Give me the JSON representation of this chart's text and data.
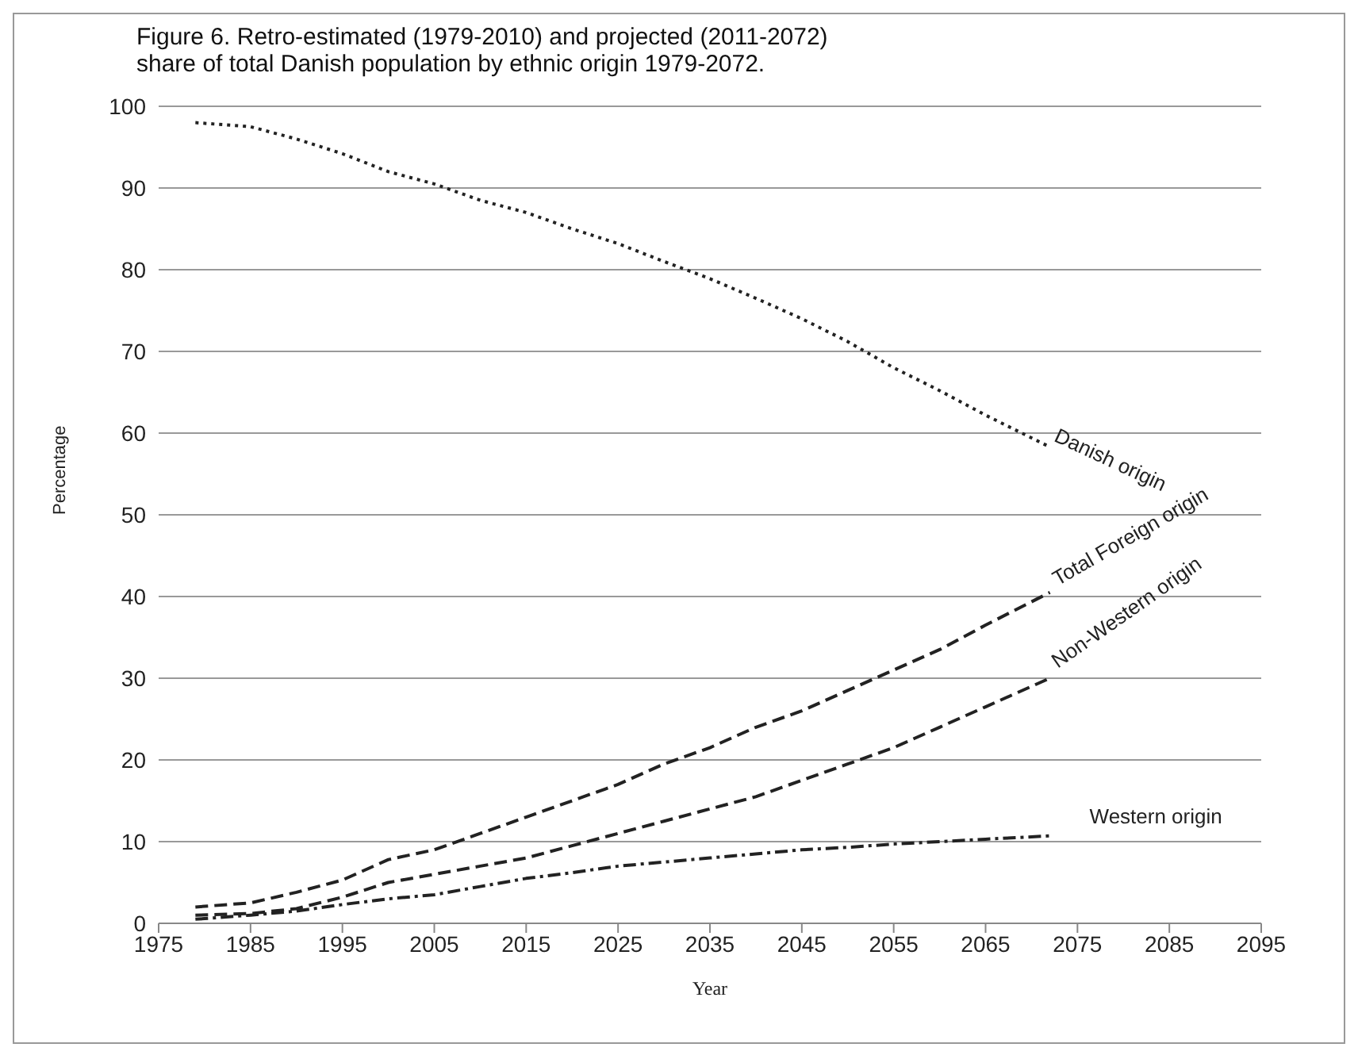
{
  "chart_data": {
    "type": "line",
    "title": "Figure 6.  Retro-estimated (1979-2010) and projected (2011-2072) share of total Danish population by ethnic origin 1979-2072.",
    "xlabel": "Year",
    "ylabel": "Percentage",
    "x": [
      1979,
      1985,
      1990,
      1995,
      2000,
      2005,
      2010,
      2015,
      2020,
      2025,
      2030,
      2035,
      2040,
      2045,
      2050,
      2055,
      2060,
      2065,
      2072
    ],
    "series": [
      {
        "name": "Danish origin",
        "color": "#222222",
        "line_style": "dotted",
        "values": [
          98,
          97.5,
          96,
          94.2,
          92,
          90.5,
          88.5,
          87,
          85,
          83.2,
          81,
          78.9,
          76.5,
          74,
          71.2,
          68,
          65.2,
          62.2,
          58.3
        ]
      },
      {
        "name": "Total Foreign origin",
        "color": "#222222",
        "line_style": "dashed",
        "values": [
          2,
          2.5,
          3.8,
          5.3,
          7.8,
          9,
          11,
          13,
          15,
          17,
          19.5,
          21.5,
          24,
          26,
          28.5,
          31,
          33.5,
          36.5,
          40.5
        ]
      },
      {
        "name": "Non-Western origin",
        "color": "#222222",
        "line_style": "dashed",
        "values": [
          1,
          1.2,
          1.8,
          3.2,
          5,
          6,
          7,
          8,
          9.5,
          11,
          12.5,
          14,
          15.5,
          17.5,
          19.5,
          21.5,
          24,
          26.5,
          30
        ]
      },
      {
        "name": "Western origin",
        "color": "#222222",
        "line_style": "dashdot",
        "values": [
          0.5,
          1,
          1.5,
          2.3,
          3,
          3.5,
          4.5,
          5.5,
          6.2,
          7,
          7.5,
          8,
          8.5,
          9,
          9.3,
          9.7,
          10,
          10.3,
          10.7
        ]
      }
    ],
    "xlim": [
      1975,
      2095
    ],
    "xticks": [
      1975,
      1985,
      1995,
      2005,
      2015,
      2025,
      2035,
      2045,
      2055,
      2065,
      2075,
      2085,
      2095
    ],
    "ylim": [
      0,
      100
    ],
    "yticks": [
      0,
      10,
      20,
      30,
      40,
      50,
      60,
      70,
      80,
      90,
      100
    ],
    "grid": "y",
    "legend": false,
    "marker": "none"
  }
}
